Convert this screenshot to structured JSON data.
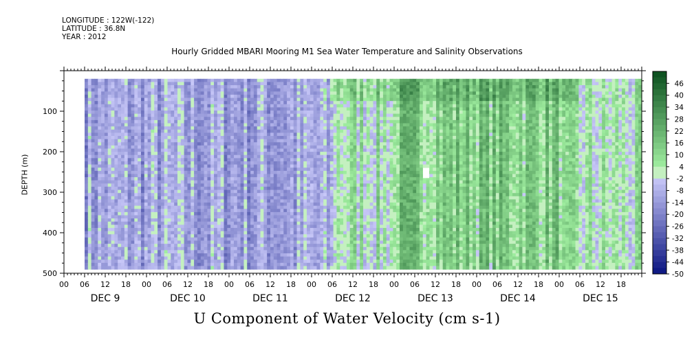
{
  "header": {
    "longitude": "LONGITUDE : 122W(-122)",
    "latitude": "LATITUDE : 36.8N",
    "year": "YEAR : 2012"
  },
  "chart_data": {
    "type": "heatmap",
    "title": "Hourly Gridded MBARI Mooring M1 Sea Water Temperature and Salinity Observations",
    "xlabel": "",
    "ylabel": "DEPTH (m)",
    "colorbar_title": "U Component of Water Velocity (cm s-1)",
    "x_hour_ticks": [
      "00",
      "06",
      "12",
      "18",
      "00",
      "06",
      "12",
      "18",
      "00",
      "06",
      "12",
      "18",
      "00",
      "06",
      "12",
      "18",
      "00",
      "06",
      "12",
      "18",
      "00",
      "06",
      "12",
      "18",
      "00",
      "06",
      "12",
      "18"
    ],
    "x_day_labels": [
      "DEC  9",
      "DEC 10",
      "DEC 11",
      "DEC 12",
      "DEC 13",
      "DEC 14",
      "DEC 15"
    ],
    "xlim_days": [
      0,
      7
    ],
    "data_start_day": 0.25,
    "data_end_day": 7,
    "y_ticks": [
      100,
      200,
      300,
      400,
      500
    ],
    "ylim": [
      500,
      0
    ],
    "data_depth_range": [
      20,
      490
    ],
    "colorbar_levels": [
      "46",
      "40",
      "34",
      "28",
      "22",
      "16",
      "10",
      "4",
      "-2",
      "-8",
      "-14",
      "-20",
      "-26",
      "-32",
      "-38",
      "-44",
      "-50"
    ],
    "colorbar_range": [
      -50,
      52
    ],
    "colorbar_step": 3,
    "colors": {
      "negative_deep": "#0b1a7a",
      "negative_light": "#c8c8f8",
      "near_zero": "#c4f0c0",
      "positive_light": "#8ee88e",
      "positive_deep": "#0a4a1e",
      "missing": "#ffffff"
    },
    "field_summary": [
      {
        "period": "DEC 9 06 - DEC 12 06",
        "dominant": "negative",
        "typical": -12
      },
      {
        "period": "DEC 12 06 - DEC 13 00",
        "dominant": "mixed",
        "typical": 4
      },
      {
        "period": "DEC 13 00 - DEC 15 00",
        "dominant": "positive",
        "typical": 14
      },
      {
        "period": "DEC 15 00 - DEC 16 00",
        "dominant": "mixed",
        "typical": 2
      }
    ]
  }
}
